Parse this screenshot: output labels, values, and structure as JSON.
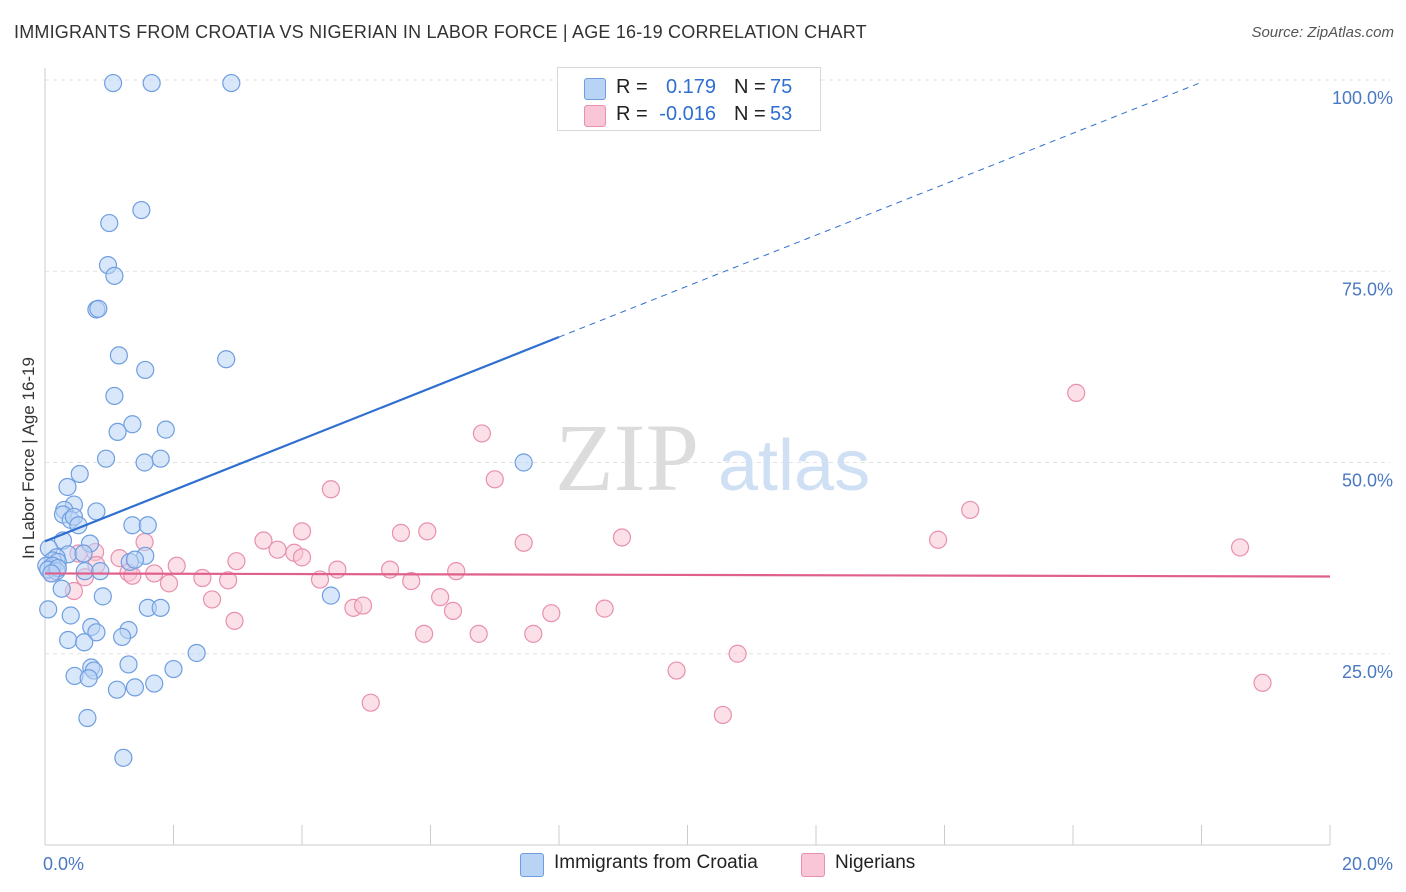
{
  "title": "IMMIGRANTS FROM CROATIA VS NIGERIAN IN LABOR FORCE | AGE 16-19 CORRELATION CHART",
  "source": "Source: ZipAtlas.com",
  "watermark": {
    "zip": "ZIP",
    "atlas": "atlas"
  },
  "legend": {
    "rows": [
      {
        "r_label": "R =",
        "r_value": "0.179",
        "n_label": "N =",
        "n_value": "75"
      },
      {
        "r_label": "R =",
        "r_value": "-0.016",
        "n_label": "N =",
        "n_value": "53"
      }
    ]
  },
  "colors": {
    "croatia_fill": "#b9d3f5",
    "croatia_stroke": "#6f9ee0",
    "croatia_line": "#2f6fd0",
    "nigerian_fill": "#f8c6d6",
    "nigerian_stroke": "#e890ae",
    "nigerian_line": "#e0608c",
    "grid": "#e2e2e2",
    "axis": "#cccccc",
    "tick_text": "#4a78c2"
  },
  "chart_data": {
    "type": "scatter",
    "title": "IMMIGRANTS FROM CROATIA VS NIGERIAN IN LABOR FORCE | AGE 16-19 CORRELATION CHART",
    "xlabel": "",
    "ylabel": "In Labor Force | Age 16-19",
    "xlim": [
      0,
      20
    ],
    "ylim": [
      0,
      100
    ],
    "x_tick_labels": [
      "0.0%",
      "20.0%"
    ],
    "y_ticks": [
      25,
      50,
      75,
      100
    ],
    "y_tick_labels": [
      "25.0%",
      "50.0%",
      "75.0%",
      "100.0%"
    ],
    "grid": true,
    "legend_position": "top-center",
    "series": [
      {
        "name": "Immigrants from Croatia",
        "r": 0.179,
        "n": 75,
        "trend": {
          "x": [
            0.0,
            8.0
          ],
          "y": [
            39.7,
            66.4
          ],
          "dashed_extension": {
            "x": [
              8.0,
              18.0
            ],
            "y": [
              66.4,
              99.7
            ]
          }
        },
        "points": [
          {
            "x": 1.06,
            "y": 99.6
          },
          {
            "x": 1.66,
            "y": 99.6
          },
          {
            "x": 2.9,
            "y": 99.6
          },
          {
            "x": 1.5,
            "y": 83.0
          },
          {
            "x": 1.0,
            "y": 81.3
          },
          {
            "x": 0.98,
            "y": 75.8
          },
          {
            "x": 1.08,
            "y": 74.4
          },
          {
            "x": 0.8,
            "y": 70.0
          },
          {
            "x": 0.83,
            "y": 70.1
          },
          {
            "x": 1.15,
            "y": 64.0
          },
          {
            "x": 2.82,
            "y": 63.5
          },
          {
            "x": 1.56,
            "y": 62.1
          },
          {
            "x": 1.08,
            "y": 58.7
          },
          {
            "x": 1.36,
            "y": 55.0
          },
          {
            "x": 1.13,
            "y": 54.0
          },
          {
            "x": 1.88,
            "y": 54.3
          },
          {
            "x": 0.95,
            "y": 50.5
          },
          {
            "x": 1.55,
            "y": 50.0
          },
          {
            "x": 1.8,
            "y": 50.5
          },
          {
            "x": 7.45,
            "y": 50.0
          },
          {
            "x": 0.54,
            "y": 48.5
          },
          {
            "x": 0.35,
            "y": 46.8
          },
          {
            "x": 0.45,
            "y": 44.5
          },
          {
            "x": 0.3,
            "y": 43.8
          },
          {
            "x": 0.8,
            "y": 43.6
          },
          {
            "x": 0.28,
            "y": 43.2
          },
          {
            "x": 0.4,
            "y": 42.5
          },
          {
            "x": 0.45,
            "y": 42.9
          },
          {
            "x": 0.52,
            "y": 41.8
          },
          {
            "x": 1.36,
            "y": 41.8
          },
          {
            "x": 1.6,
            "y": 41.8
          },
          {
            "x": 0.28,
            "y": 39.8
          },
          {
            "x": 0.7,
            "y": 39.4
          },
          {
            "x": 0.06,
            "y": 38.8
          },
          {
            "x": 0.36,
            "y": 38.0
          },
          {
            "x": 0.6,
            "y": 38.1
          },
          {
            "x": 1.56,
            "y": 37.8
          },
          {
            "x": 0.18,
            "y": 37.6
          },
          {
            "x": 0.12,
            "y": 37.2
          },
          {
            "x": 0.2,
            "y": 37.0
          },
          {
            "x": 0.02,
            "y": 36.5
          },
          {
            "x": 0.12,
            "y": 36.5
          },
          {
            "x": 1.32,
            "y": 37.0
          },
          {
            "x": 1.4,
            "y": 37.3
          },
          {
            "x": 0.05,
            "y": 36.0
          },
          {
            "x": 0.18,
            "y": 35.8
          },
          {
            "x": 0.2,
            "y": 36.2
          },
          {
            "x": 0.1,
            "y": 35.5
          },
          {
            "x": 0.62,
            "y": 35.8
          },
          {
            "x": 0.86,
            "y": 35.8
          },
          {
            "x": 0.26,
            "y": 33.5
          },
          {
            "x": 0.9,
            "y": 32.5
          },
          {
            "x": 4.45,
            "y": 32.6
          },
          {
            "x": 0.05,
            "y": 30.8
          },
          {
            "x": 0.4,
            "y": 30.0
          },
          {
            "x": 1.6,
            "y": 31.0
          },
          {
            "x": 1.8,
            "y": 31.0
          },
          {
            "x": 0.72,
            "y": 28.5
          },
          {
            "x": 0.8,
            "y": 27.8
          },
          {
            "x": 1.3,
            "y": 28.1
          },
          {
            "x": 0.36,
            "y": 26.8
          },
          {
            "x": 0.61,
            "y": 26.5
          },
          {
            "x": 1.2,
            "y": 27.2
          },
          {
            "x": 2.36,
            "y": 25.1
          },
          {
            "x": 1.3,
            "y": 23.6
          },
          {
            "x": 0.72,
            "y": 23.2
          },
          {
            "x": 0.76,
            "y": 22.8
          },
          {
            "x": 2.0,
            "y": 23.0
          },
          {
            "x": 0.46,
            "y": 22.1
          },
          {
            "x": 0.68,
            "y": 21.8
          },
          {
            "x": 1.12,
            "y": 20.3
          },
          {
            "x": 1.4,
            "y": 20.6
          },
          {
            "x": 1.7,
            "y": 21.1
          },
          {
            "x": 0.66,
            "y": 16.6
          },
          {
            "x": 1.22,
            "y": 11.4
          }
        ]
      },
      {
        "name": "Nigerians",
        "r": -0.016,
        "n": 53,
        "trend": {
          "x": [
            0.0,
            20.0
          ],
          "y": [
            35.5,
            35.1
          ]
        },
        "points": [
          {
            "x": 16.05,
            "y": 59.1
          },
          {
            "x": 6.8,
            "y": 53.8
          },
          {
            "x": 7.0,
            "y": 47.8
          },
          {
            "x": 4.45,
            "y": 46.5
          },
          {
            "x": 14.4,
            "y": 43.8
          },
          {
            "x": 4.0,
            "y": 41.0
          },
          {
            "x": 5.54,
            "y": 40.8
          },
          {
            "x": 5.95,
            "y": 41.0
          },
          {
            "x": 8.98,
            "y": 40.2
          },
          {
            "x": 13.9,
            "y": 39.9
          },
          {
            "x": 3.4,
            "y": 39.8
          },
          {
            "x": 7.45,
            "y": 39.5
          },
          {
            "x": 18.6,
            "y": 38.9
          },
          {
            "x": 1.55,
            "y": 39.6
          },
          {
            "x": 3.62,
            "y": 38.6
          },
          {
            "x": 0.78,
            "y": 38.3
          },
          {
            "x": 0.52,
            "y": 38.1
          },
          {
            "x": 3.88,
            "y": 38.2
          },
          {
            "x": 4.0,
            "y": 37.6
          },
          {
            "x": 1.16,
            "y": 37.5
          },
          {
            "x": 2.98,
            "y": 37.1
          },
          {
            "x": 0.8,
            "y": 36.6
          },
          {
            "x": 2.05,
            "y": 36.5
          },
          {
            "x": 4.55,
            "y": 36.0
          },
          {
            "x": 5.37,
            "y": 36.0
          },
          {
            "x": 6.4,
            "y": 35.8
          },
          {
            "x": 1.3,
            "y": 35.6
          },
          {
            "x": 1.7,
            "y": 35.5
          },
          {
            "x": 0.62,
            "y": 35.0
          },
          {
            "x": 1.36,
            "y": 35.2
          },
          {
            "x": 2.45,
            "y": 34.9
          },
          {
            "x": 2.85,
            "y": 34.6
          },
          {
            "x": 4.28,
            "y": 34.7
          },
          {
            "x": 5.7,
            "y": 34.5
          },
          {
            "x": 1.93,
            "y": 34.2
          },
          {
            "x": 0.45,
            "y": 33.2
          },
          {
            "x": 2.6,
            "y": 32.1
          },
          {
            "x": 6.15,
            "y": 32.4
          },
          {
            "x": 4.8,
            "y": 31.0
          },
          {
            "x": 4.95,
            "y": 31.3
          },
          {
            "x": 6.35,
            "y": 30.6
          },
          {
            "x": 8.71,
            "y": 30.9
          },
          {
            "x": 7.88,
            "y": 30.3
          },
          {
            "x": 2.95,
            "y": 29.3
          },
          {
            "x": 5.9,
            "y": 27.6
          },
          {
            "x": 6.75,
            "y": 27.6
          },
          {
            "x": 7.6,
            "y": 27.6
          },
          {
            "x": 10.78,
            "y": 25.0
          },
          {
            "x": 9.83,
            "y": 22.8
          },
          {
            "x": 18.95,
            "y": 21.2
          },
          {
            "x": 5.07,
            "y": 18.6
          },
          {
            "x": 10.55,
            "y": 17.0
          },
          {
            "x": 0.1,
            "y": 35.5
          }
        ]
      }
    ]
  }
}
